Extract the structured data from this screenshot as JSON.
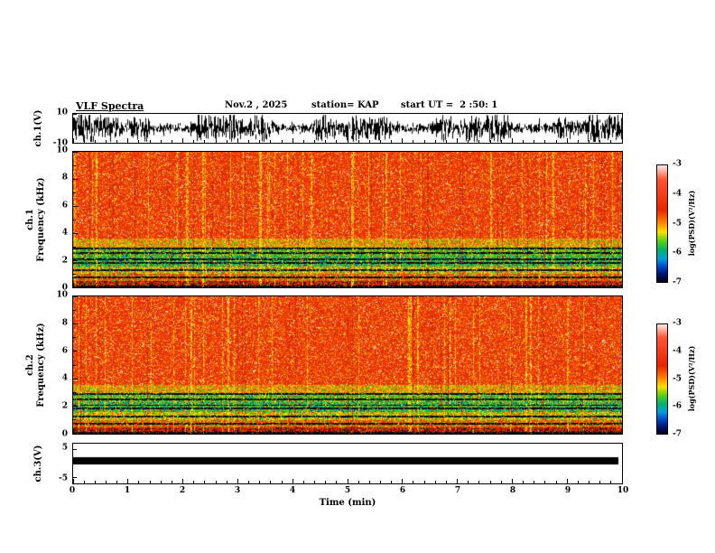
{
  "header": {
    "title": "VLF Spectra",
    "date": "Nov.2 , 2025",
    "station": "station= KAP",
    "start_ut": "start UT =  2 :50: 1"
  },
  "chart_data": {
    "type": "heatmap",
    "title": "VLF Spectra",
    "x_axis": {
      "label": "Time (min)",
      "min": 0,
      "max": 10,
      "ticks": [
        "0",
        "1",
        "2",
        "3",
        "4",
        "5",
        "6",
        "7",
        "8",
        "9",
        "10"
      ]
    },
    "panels": [
      {
        "id": "ch1-waveform",
        "type": "line",
        "ylabel": "ch.1(V)",
        "ylim": [
          -10,
          10
        ],
        "yticks": [
          "10",
          "-10"
        ],
        "description": "dense black broadband noise waveform with varying envelope spanning roughly -10 to +10 V over the full 10 minutes"
      },
      {
        "id": "ch1-spectrogram",
        "type": "heatmap",
        "ylabel_line1": "ch.1",
        "ylabel_line2": "Frequency (kHz)",
        "ylim": [
          0,
          10
        ],
        "yticks": [
          "10",
          "8",
          "6",
          "4",
          "2",
          "0"
        ],
        "description": "0-10 kHz spectrogram: intense red above ~3.5 kHz with vertical yellow/orange streaks, green-yellow band 1-3.5 kHz crossed by dark horizontal lines, dark red band near 0 kHz"
      },
      {
        "id": "ch2-spectrogram",
        "type": "heatmap",
        "ylabel_line1": "ch.2",
        "ylabel_line2": "Frequency (kHz)",
        "ylim": [
          0,
          10
        ],
        "yticks": [
          "10",
          "8",
          "6",
          "4",
          "2",
          "0"
        ],
        "description": "same structure as ch.1 spectrogram: red upper band, green/yellow lower bands with dark horizontal lines"
      },
      {
        "id": "ch3-waveform",
        "type": "line",
        "ylabel": "ch.3(V)",
        "ylim": [
          -5,
          5
        ],
        "yticks": [
          "5",
          "-5"
        ],
        "description": "flat thick saturated black trace just above 0 V for the entire record"
      }
    ],
    "spectrogram": {
      "streak_probability": 0.06,
      "dark_column_probability": 0.04,
      "dark_column_color": "#c02000",
      "dark_line_color": "#000a18",
      "streak_colors": [
        [
          "#ffd400",
          0.45
        ],
        [
          "#ff9800",
          0.3
        ],
        [
          "#ffec40",
          0.25
        ]
      ],
      "dark_lines": [
        2.92,
        2.55,
        2.1,
        1.85,
        1.3,
        0.78,
        0.12
      ],
      "bands": [
        {
          "fmin": 3.6,
          "fmax": 10.0,
          "colors": [
            [
              "#e83008",
              0.5
            ],
            [
              "#f24e0c",
              0.18
            ],
            [
              "#ff7a00",
              0.12
            ],
            [
              "#ffc400",
              0.07
            ],
            [
              "#d02400",
              0.09
            ],
            [
              "#ffe8d8",
              0.04
            ]
          ]
        },
        {
          "fmin": 3.0,
          "fmax": 3.6,
          "colors": [
            [
              "#f05808",
              0.25
            ],
            [
              "#ff9800",
              0.2
            ],
            [
              "#ffd800",
              0.2
            ],
            [
              "#a0cc10",
              0.15
            ],
            [
              "#38b818",
              0.12
            ],
            [
              "#e83008",
              0.08
            ]
          ]
        },
        {
          "fmin": 2.35,
          "fmax": 3.0,
          "colors": [
            [
              "#2cb81c",
              0.34
            ],
            [
              "#70cc14",
              0.18
            ],
            [
              "#ffe000",
              0.14
            ],
            [
              "#00a878",
              0.1
            ],
            [
              "#f04810",
              0.08
            ],
            [
              "#083880",
              0.08
            ],
            [
              "#9cd810",
              0.08
            ]
          ]
        },
        {
          "fmin": 1.6,
          "fmax": 2.35,
          "colors": [
            [
              "#24b84c",
              0.26
            ],
            [
              "#00a8a0",
              0.18
            ],
            [
              "#30c81c",
              0.18
            ],
            [
              "#ffe000",
              0.1
            ],
            [
              "#f05810",
              0.08
            ],
            [
              "#082868",
              0.1
            ],
            [
              "#60cc10",
              0.1
            ]
          ]
        },
        {
          "fmin": 1.05,
          "fmax": 1.6,
          "colors": [
            [
              "#ffe000",
              0.26
            ],
            [
              "#c8d808",
              0.18
            ],
            [
              "#38c018",
              0.16
            ],
            [
              "#ff8800",
              0.14
            ],
            [
              "#f03808",
              0.16
            ],
            [
              "#00a070",
              0.1
            ]
          ]
        },
        {
          "fmin": 0.5,
          "fmax": 1.05,
          "colors": [
            [
              "#f03c08",
              0.4
            ],
            [
              "#ff8000",
              0.18
            ],
            [
              "#ffd800",
              0.12
            ],
            [
              "#40c018",
              0.16
            ],
            [
              "#d82400",
              0.14
            ]
          ]
        },
        {
          "fmin": 0.0,
          "fmax": 0.5,
          "colors": [
            [
              "#d82808",
              0.42
            ],
            [
              "#901000",
              0.2
            ],
            [
              "#400000",
              0.12
            ],
            [
              "#f06000",
              0.12
            ],
            [
              "#20a010",
              0.06
            ],
            [
              "#000000",
              0.08
            ]
          ]
        }
      ]
    },
    "colorbar": {
      "label": "log(PSD)(V²/Hz)",
      "ticks": [
        "-3",
        "-4",
        "-5",
        "-6",
        "-7"
      ],
      "gradient": [
        [
          0.0,
          "#ffeae6"
        ],
        [
          0.05,
          "#ffb0a0"
        ],
        [
          0.12,
          "#ff5535"
        ],
        [
          0.38,
          "#e82400"
        ],
        [
          0.48,
          "#ff7800"
        ],
        [
          0.57,
          "#ffe000"
        ],
        [
          0.65,
          "#58d018"
        ],
        [
          0.73,
          "#00b070"
        ],
        [
          0.8,
          "#00a0d8"
        ],
        [
          0.87,
          "#0048c8"
        ],
        [
          0.93,
          "#001878"
        ],
        [
          1.0,
          "#000014"
        ]
      ]
    }
  }
}
